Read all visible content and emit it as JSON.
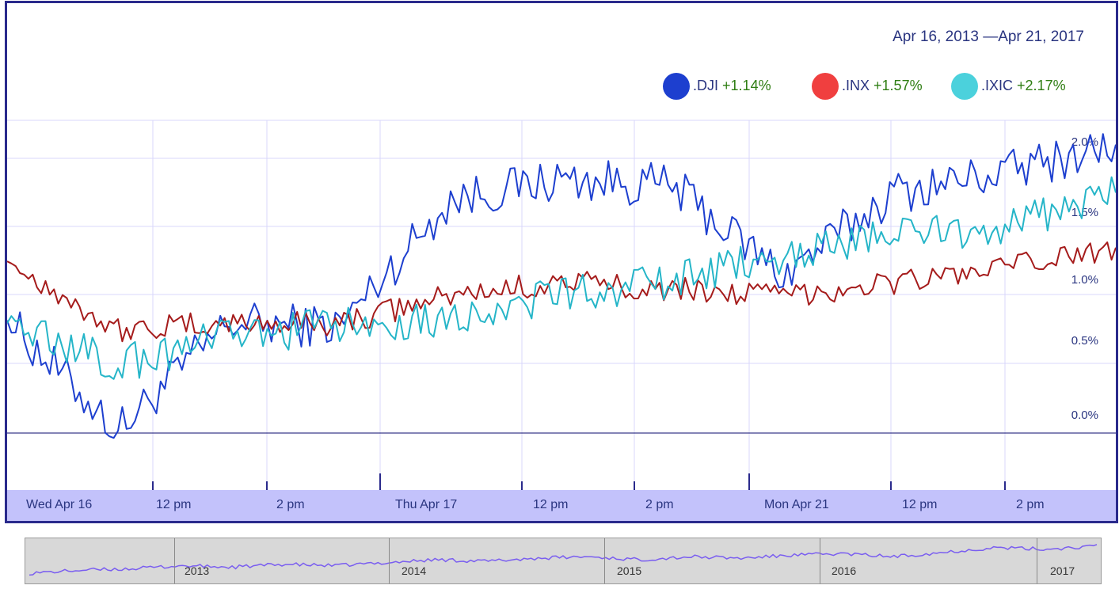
{
  "header": {
    "date_range": "Apr 16, 2013 —Apr 21, 2017"
  },
  "legend": [
    {
      "name": ".DJI",
      "change": "+1.14%",
      "color": "#1d3fcf"
    },
    {
      "name": ".INX",
      "change": "+1.57%",
      "color": "#f03f3f"
    },
    {
      "name": ".IXIC",
      "change": "+2.17%",
      "color": "#4bd1dc"
    }
  ],
  "time_labels": [
    "Wed Apr 16",
    "12 pm",
    "2 pm",
    "Thu Apr 17",
    "12 pm",
    "2 pm",
    "Mon Apr 21",
    "12 pm",
    "2 pm"
  ],
  "navigator": {
    "years": [
      "2013",
      "2014",
      "2015",
      "2016",
      "2017"
    ]
  },
  "chart_data": {
    "type": "line",
    "y_tick_labels": [
      "2.0%",
      "1.5%",
      "1.0%",
      "0.5%",
      "0.0%"
    ],
    "ylim": [
      -0.1,
      2.1
    ],
    "grid": true,
    "legend_position": "top-right",
    "x": [
      0,
      0.1,
      0.2,
      0.3,
      0.4,
      0.5,
      0.6,
      0.7,
      0.8,
      0.9,
      1.0
    ],
    "series": [
      {
        "name": ".DJI",
        "color": "#1d3fcf",
        "values": [
          0.82,
          0.02,
          0.8,
          0.78,
          1.7,
          1.85,
          1.8,
          1.15,
          1.75,
          1.9,
          2.1
        ]
      },
      {
        "name": ".INX",
        "color": "#a51b1b",
        "values": [
          1.25,
          0.75,
          0.8,
          0.8,
          1.0,
          1.1,
          1.05,
          1.0,
          1.1,
          1.2,
          1.35
        ]
      },
      {
        "name": ".IXIC",
        "color": "#25b5c8",
        "values": [
          0.8,
          0.5,
          0.7,
          0.78,
          0.85,
          1.0,
          1.1,
          1.3,
          1.45,
          1.5,
          1.75
        ]
      }
    ],
    "navigator_series": [
      0.05,
      0.15,
      0.2,
      0.3,
      0.25,
      0.35,
      0.3,
      0.4,
      0.5,
      0.45,
      0.55,
      0.6,
      0.5,
      0.6,
      0.55,
      0.65,
      0.7,
      0.6,
      0.75,
      0.9,
      0.85,
      0.95
    ]
  }
}
